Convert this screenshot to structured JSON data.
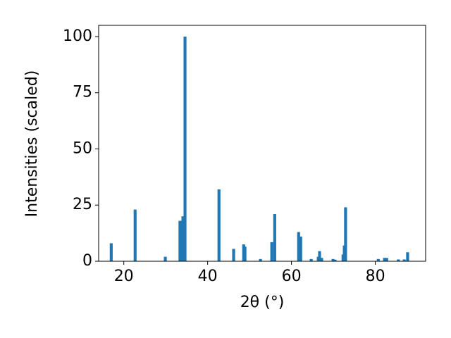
{
  "chart_data": {
    "type": "bar",
    "xlabel": "2θ (°)",
    "ylabel": "Intensities (scaled)",
    "x": [
      17.0,
      22.7,
      29.9,
      33.4,
      34.1,
      34.6,
      42.7,
      46.2,
      48.6,
      48.9,
      52.6,
      55.3,
      56.0,
      61.7,
      62.2,
      64.7,
      66.4,
      66.7,
      67.2,
      69.9,
      70.4,
      72.3,
      72.6,
      72.9,
      80.7,
      82.2,
      82.7,
      85.5,
      86.9,
      87.7
    ],
    "values": [
      8,
      23,
      2,
      18,
      20,
      100,
      32,
      5.5,
      7.5,
      6.5,
      1,
      8.5,
      21,
      13,
      11,
      1,
      2,
      4.5,
      1.5,
      1,
      0.7,
      3,
      7,
      24,
      1,
      1.5,
      1.5,
      0.8,
      0.8,
      4
    ],
    "color": "#1f77b4",
    "xlim": [
      14,
      92
    ],
    "ylim": [
      0,
      105
    ],
    "xticks": [
      20,
      40,
      60,
      80
    ],
    "yticks": [
      0,
      25,
      50,
      75,
      100
    ]
  }
}
